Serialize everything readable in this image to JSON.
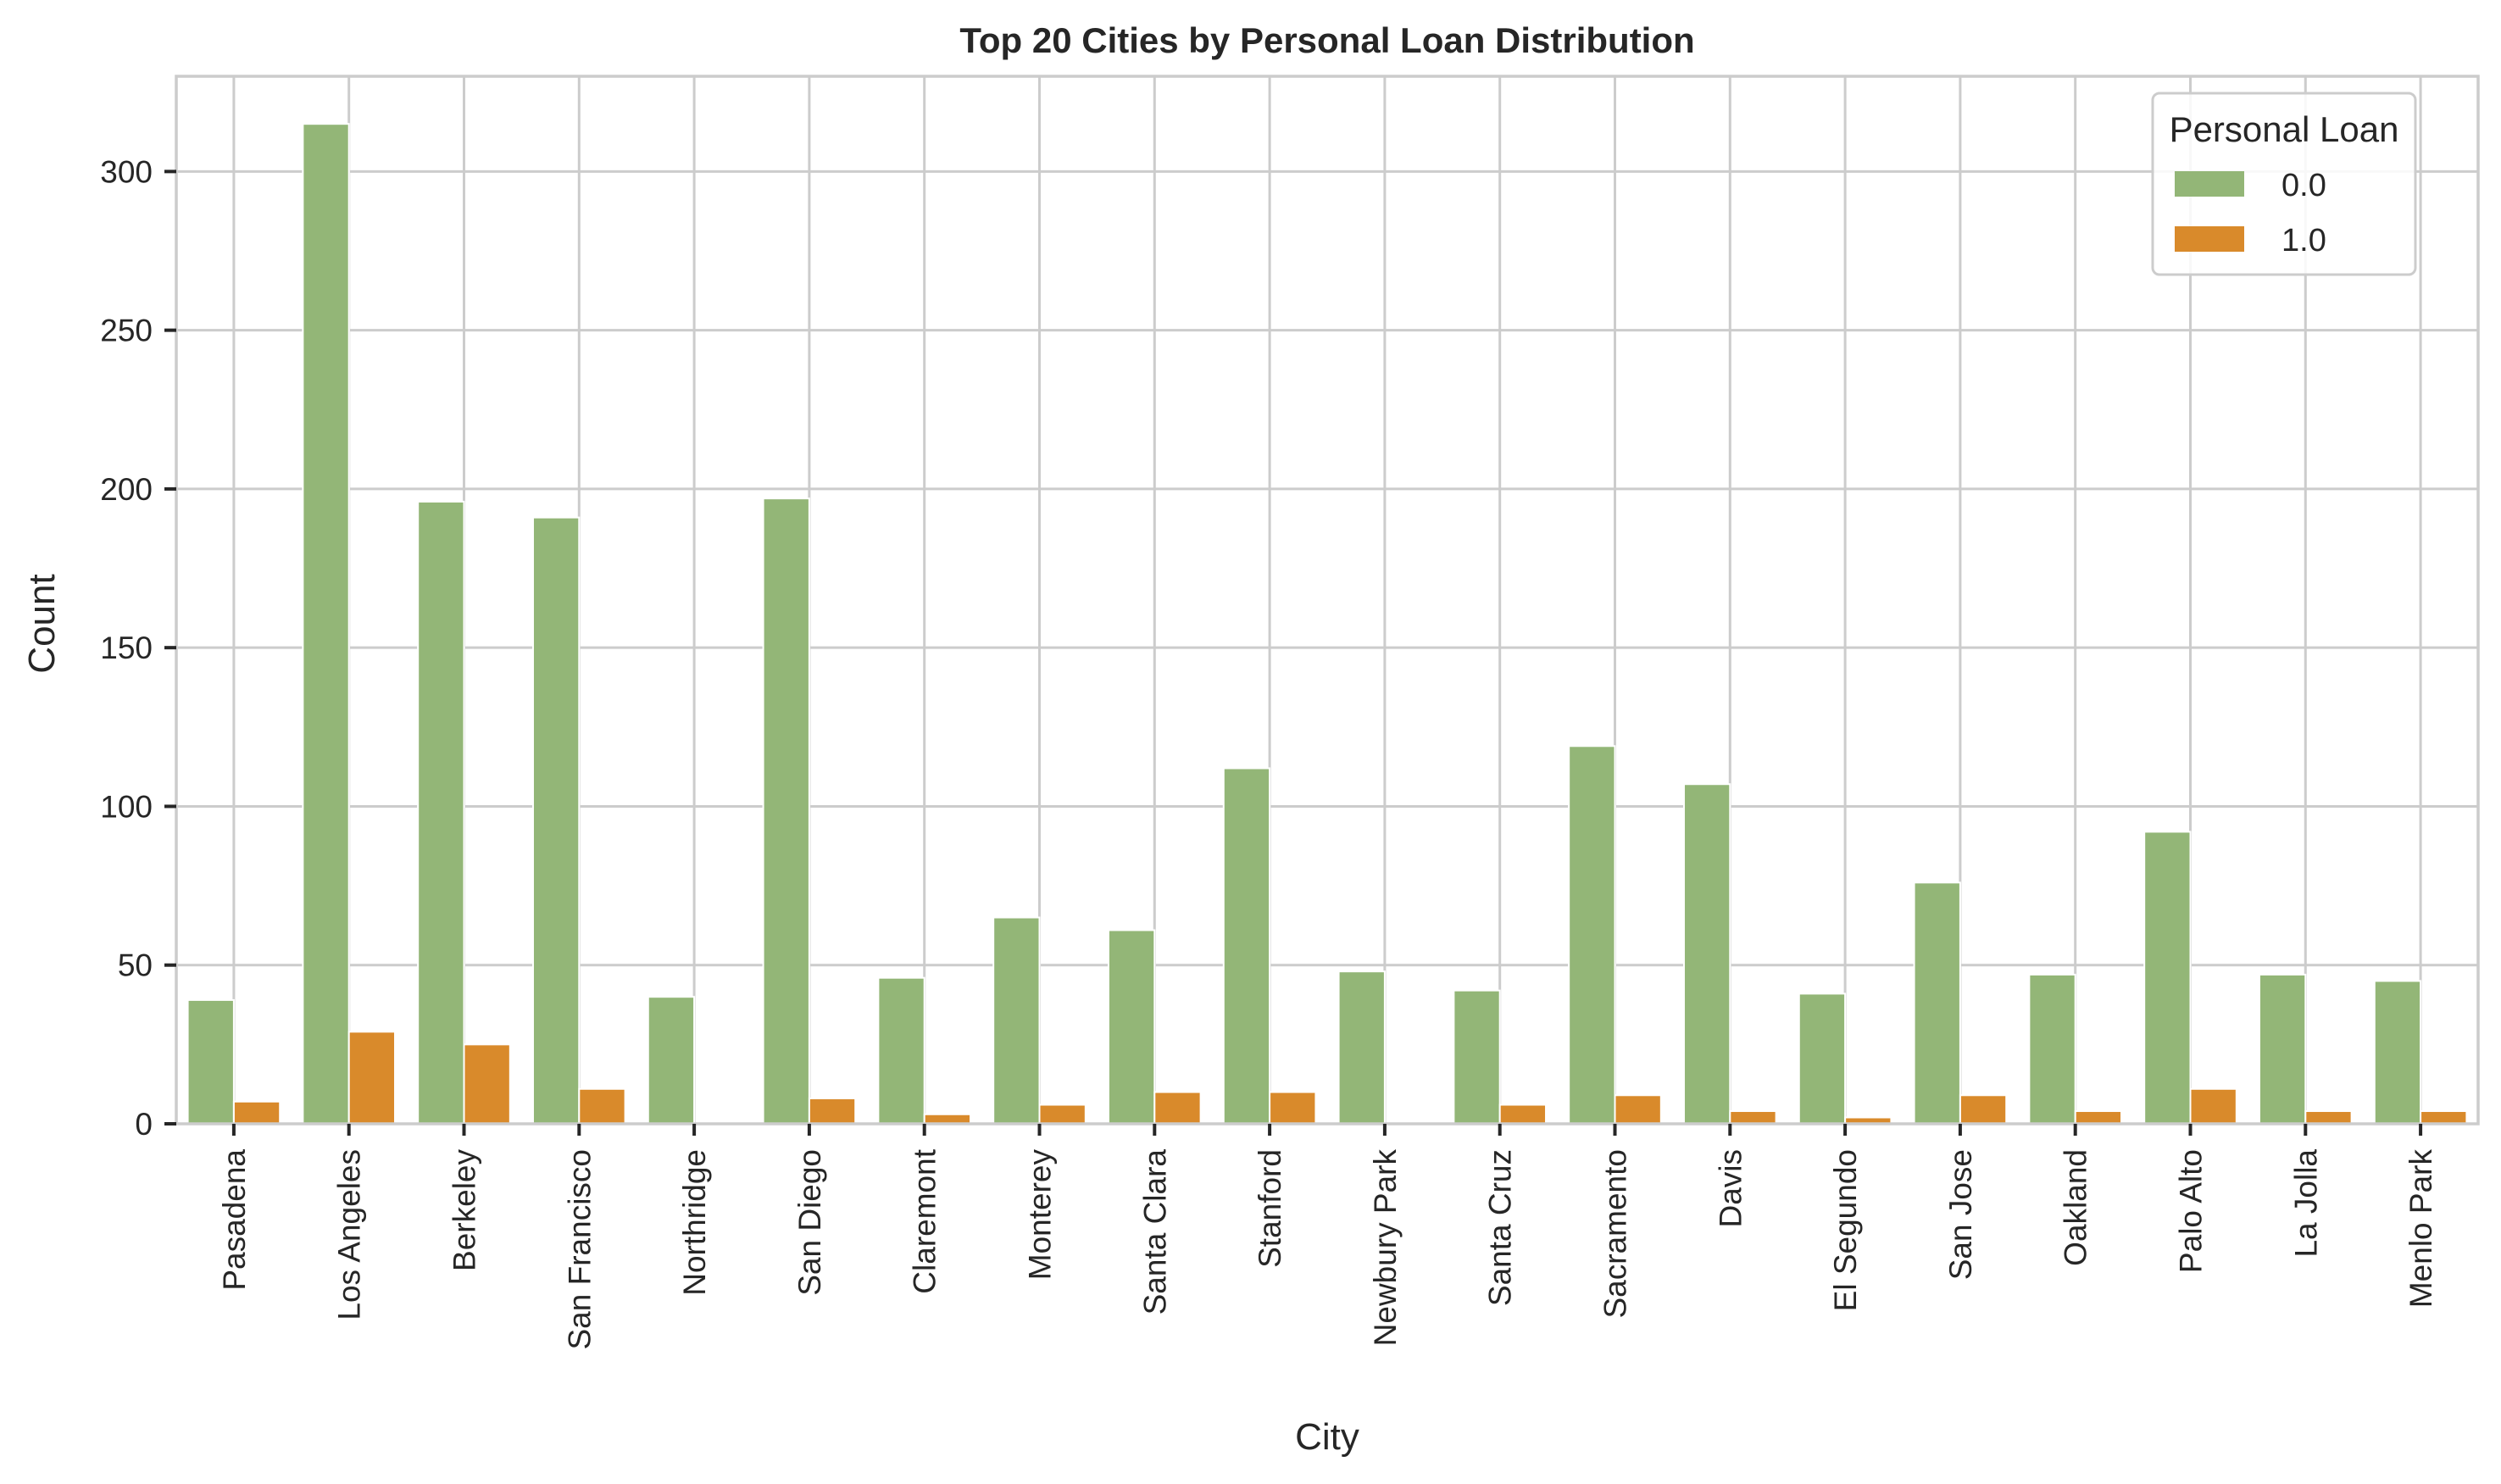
{
  "chart_data": {
    "type": "bar",
    "title": "Top 20 Cities by Personal Loan Distribution",
    "xlabel": "City",
    "ylabel": "Count",
    "categories": [
      "Pasadena",
      "Los Angeles",
      "Berkeley",
      "San Francisco",
      "Northridge",
      "San Diego",
      "Claremont",
      "Monterey",
      "Santa Clara",
      "Stanford",
      "Newbury Park",
      "Santa Cruz",
      "Sacramento",
      "Davis",
      "El Segundo",
      "San Jose",
      "Oakland",
      "Palo Alto",
      "La Jolla",
      "Menlo Park"
    ],
    "series": [
      {
        "name": "0.0",
        "color": "#93b677",
        "values": [
          39,
          315,
          196,
          191,
          40,
          197,
          46,
          65,
          61,
          112,
          48,
          42,
          119,
          107,
          41,
          76,
          47,
          92,
          47,
          45
        ]
      },
      {
        "name": "1.0",
        "color": "#d98a2b",
        "values": [
          7,
          29,
          25,
          11,
          0,
          8,
          3,
          6,
          10,
          10,
          0,
          6,
          9,
          4,
          2,
          9,
          4,
          11,
          4,
          4
        ]
      }
    ],
    "ylim": [
      0,
      330
    ],
    "yticks": [
      0,
      50,
      100,
      150,
      200,
      250,
      300
    ],
    "grid": true,
    "legend": {
      "title": "Personal Loan",
      "placement": "top-right"
    }
  }
}
